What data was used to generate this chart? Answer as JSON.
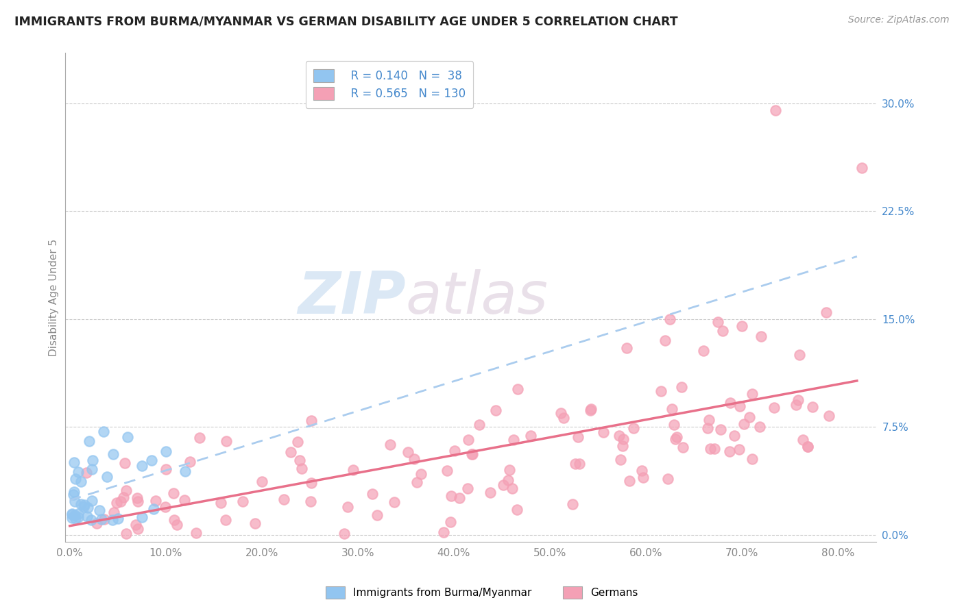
{
  "title": "IMMIGRANTS FROM BURMA/MYANMAR VS GERMAN DISABILITY AGE UNDER 5 CORRELATION CHART",
  "source": "Source: ZipAtlas.com",
  "ylabel": "Disability Age Under 5",
  "xlim_min": -0.005,
  "xlim_max": 0.84,
  "ylim_min": -0.005,
  "ylim_max": 0.335,
  "xtick_values": [
    0.0,
    0.1,
    0.2,
    0.3,
    0.4,
    0.5,
    0.6,
    0.7,
    0.8
  ],
  "xticklabels": [
    "0.0%",
    "10.0%",
    "20.0%",
    "30.0%",
    "40.0%",
    "50.0%",
    "60.0%",
    "70.0%",
    "80.0%"
  ],
  "ytick_values": [
    0.0,
    0.075,
    0.15,
    0.225,
    0.3
  ],
  "yticklabels": [
    "0.0%",
    "7.5%",
    "15.0%",
    "22.5%",
    "30.0%"
  ],
  "blue_color": "#92C5F0",
  "pink_color": "#F4A0B5",
  "trendline_blue_color": "#AACCEE",
  "trendline_pink_color": "#E8708A",
  "R_blue": 0.14,
  "N_blue": 38,
  "R_pink": 0.565,
  "N_pink": 130,
  "legend_label_blue": "Immigrants from Burma/Myanmar",
  "legend_label_pink": "Germans",
  "watermark_zip": "ZIP",
  "watermark_atlas": "atlas",
  "title_color": "#222222",
  "axis_label_color": "#4488CC",
  "right_tick_color": "#4488CC",
  "bottom_tick_color": "#888888",
  "grid_color": "#CCCCCC",
  "background_color": "#ffffff",
  "blue_seed": 42,
  "pink_seed": 17
}
